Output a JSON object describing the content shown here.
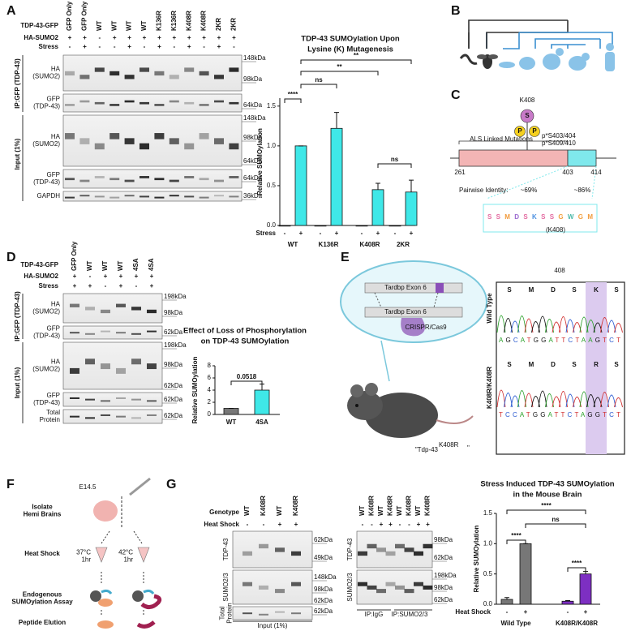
{
  "panel_labels": {
    "a": "A",
    "b": "B",
    "c": "C",
    "d": "D",
    "e": "E",
    "f": "F",
    "g": "G"
  },
  "a": {
    "blot": {
      "row_labels": [
        "TDP-43-GFP",
        "HA-SUMO2",
        "Stress"
      ],
      "lanes": [
        [
          "GFP Only",
          "GFP Only",
          "WT",
          "WT",
          "WT",
          "WT",
          "K136R",
          "K136R",
          "K408R",
          "K408R",
          "2KR",
          "2KR"
        ],
        [
          "+",
          "+",
          "-",
          "+",
          "+",
          "+",
          "+",
          "+",
          "+",
          "+",
          "+",
          "+"
        ],
        [
          "-",
          "+",
          "-",
          "-",
          "+",
          "-",
          "+",
          "-",
          "+",
          "-",
          "+",
          "-"
        ]
      ],
      "strip_labels": [
        [
          "HA",
          "(SUMO2)"
        ],
        [
          "GFP",
          "(TDP-43)"
        ],
        [
          "HA",
          "(SUMO2)"
        ],
        [
          "GFP",
          "(TDP-43)"
        ],
        [
          "GAPDH"
        ]
      ],
      "side_labels": [
        "IP:GFP (TDP-43)",
        "Input (1%)"
      ],
      "markers": [
        "148kDa",
        "98kDa",
        "64kDa",
        "148kDa",
        "98kDa",
        "64kDa",
        "64kDa",
        "36kDa"
      ]
    },
    "chart": {
      "type": "bar",
      "title": [
        "TDP-43 SUMOylation Upon",
        "Lysine (K) Mutagenesis"
      ],
      "y_label": "Relative SUMOylation",
      "row_label": "Stress",
      "categories": [
        "-",
        "+",
        "-",
        "+",
        "-",
        "+",
        "-",
        "+"
      ],
      "groups": [
        "WT",
        "K136R",
        "K408R",
        "2KR"
      ],
      "values": [
        0,
        1.0,
        0,
        1.22,
        0,
        0.45,
        0,
        0.42
      ],
      "errors": [
        0,
        0,
        0,
        0.2,
        0,
        0.08,
        0,
        0.15
      ],
      "colors": [
        "#888888",
        "#3fe8e8",
        "#888888",
        "#3fe8e8",
        "#888888",
        "#3fe8e8",
        "#888888",
        "#3fe8e8"
      ],
      "ylim": [
        0,
        1.6
      ],
      "yticks": [
        {
          "value": 0,
          "label": "0.0"
        },
        0.5,
        {
          "value": 1,
          "label": "1.0"
        },
        1.5
      ],
      "significance": [
        "****",
        "ns",
        "**",
        "**",
        "ns"
      ]
    }
  },
  "c": {
    "site": "K408",
    "sumo": "S",
    "phospho": [
      "P",
      "P"
    ],
    "phospho_sites": [
      "p*S403/404",
      "p*S409/410"
    ],
    "region_label": "ALS Linked Mutations",
    "positions": [
      "261",
      "403",
      "414"
    ],
    "identity_label": "Pairwise Identity:",
    "identities": [
      "~69%",
      "~86%"
    ],
    "logo": "SSMDSKSSGWGM",
    "logo_note": "(K408)"
  },
  "d": {
    "blot": {
      "row_labels": [
        "TDP-43-GFP",
        "HA-SUMO2",
        "Stress"
      ],
      "lanes": [
        [
          "GFP Only",
          "WT",
          "WT",
          "WT",
          "4SA",
          "4SA"
        ],
        [
          "+",
          "-",
          "+",
          "+",
          "+",
          "+"
        ],
        [
          "+",
          "+",
          "-",
          "+",
          "-",
          "+"
        ]
      ],
      "strip_labels": [
        [
          "HA",
          "(SUMO2)"
        ],
        [
          "GFP",
          "(TDP-43)"
        ],
        [
          "HA",
          "(SUMO2)"
        ],
        [
          "GFP",
          "(TDP-43)"
        ],
        [
          "Total",
          "Protein"
        ]
      ],
      "side_labels": [
        "IP:GFP (TDP-43)",
        "Input (1%)"
      ],
      "markers": [
        "198kDa",
        "98kDa",
        "62kDa",
        "198kDa",
        "98kDa",
        "62kDa",
        "62kDa",
        "62kDa"
      ]
    },
    "chart": {
      "type": "bar",
      "title": [
        "Effect of Loss of Phosphorylation",
        "on TDP-43 SUMOylation"
      ],
      "y_label": "Relative SUMOylation",
      "categories": [
        "WT",
        "4SA"
      ],
      "values": [
        1.0,
        4.0
      ],
      "errors": [
        0,
        1.0
      ],
      "colors": [
        "#777777",
        "#3fe8e8"
      ],
      "ylim": [
        0,
        8
      ],
      "yticks": [
        0,
        2,
        4,
        6,
        8
      ],
      "significance": [
        "0.0518"
      ]
    }
  },
  "e": {
    "exon_labels": [
      "Tardbp Exon 6",
      "Tardbp Exon 6"
    ],
    "tool": "CRISPR/Cas9",
    "model": [
      "\"Tdp-43",
      "K408R",
      "\""
    ],
    "position": "408",
    "genotypes": [
      "Wild Type",
      "K408R/K408R"
    ],
    "residues": [
      [
        "S",
        "M",
        "D",
        "S",
        "K",
        "S"
      ],
      [
        "S",
        "M",
        "D",
        "S",
        "R",
        "S"
      ]
    ],
    "sequences": [
      "AGCATGGATTCTAAGTCT",
      "TCCATGGATTCTAGGTCT"
    ]
  },
  "f": {
    "steps": [
      [
        "Isolate",
        "Hemi Brains"
      ],
      [
        "Heat Shock"
      ],
      [
        "Endogenous",
        "SUMOylation Assay"
      ],
      [
        "Peptide Elution"
      ]
    ],
    "age": "E14.5",
    "conditions": [
      [
        "37°C",
        "1hr"
      ],
      [
        "42°C",
        "1hr"
      ]
    ]
  },
  "g": {
    "row_labels": [
      "Genotype",
      "Heat Shock"
    ],
    "input_blot": {
      "lanes": [
        [
          "WT",
          "K408R",
          "WT",
          "K408R"
        ],
        [
          "-",
          "-",
          "+",
          "+"
        ]
      ],
      "strip_labels": [
        [
          "TDP-43"
        ],
        [
          "SUMO2/3"
        ],
        [
          "Total",
          "Protein"
        ]
      ],
      "markers": [
        "62kDa",
        "49kDa",
        "148kDa",
        "98kDa",
        "62kDa",
        "62kDa"
      ],
      "caption": "Input (1%)"
    },
    "ip_blot": {
      "lanes": [
        [
          "WT",
          "K408R",
          "WT",
          "K408R",
          "WT",
          "K408R",
          "WT",
          "K408R"
        ],
        [
          "-",
          "-",
          "+",
          "+",
          "-",
          "-",
          "+",
          "+"
        ]
      ],
      "strip_labels": [
        [
          "TDP-43"
        ],
        [
          "SUMO2/3"
        ]
      ],
      "markers": [
        "98kDa",
        "62kDa",
        "198kDa",
        "98kDa",
        "62kDa"
      ],
      "captions": [
        "IP:IgG",
        "IP:SUMO2/3"
      ]
    },
    "genotype_colors": {
      "WT": "#9a9a9a",
      "K408R": "#9b45d6"
    },
    "chart": {
      "type": "bar",
      "title": [
        "Stress Induced TDP-43 SUMOylation",
        "in the Mouse Brain"
      ],
      "y_label": "Relative SUMOylation",
      "row_label": "Heat Shock",
      "categories": [
        "-",
        "+",
        "-",
        "+"
      ],
      "groups": [
        "Wild Type",
        "K408R/K408R"
      ],
      "group_colors": [
        "#555555",
        "#7d2fc2"
      ],
      "values": [
        0.08,
        1.0,
        0.05,
        0.5
      ],
      "errors": [
        0.03,
        0,
        0.01,
        0.04
      ],
      "colors": [
        "#777777",
        "#777777",
        "#7d2fc2",
        "#7d2fc2"
      ],
      "ylim": [
        0,
        1.5
      ],
      "yticks": [
        {
          "value": 0,
          "label": "0.0"
        },
        0.5,
        {
          "value": 1,
          "label": "1.0"
        },
        1.5
      ],
      "significance": [
        "****",
        "****",
        "ns",
        "****"
      ]
    }
  }
}
